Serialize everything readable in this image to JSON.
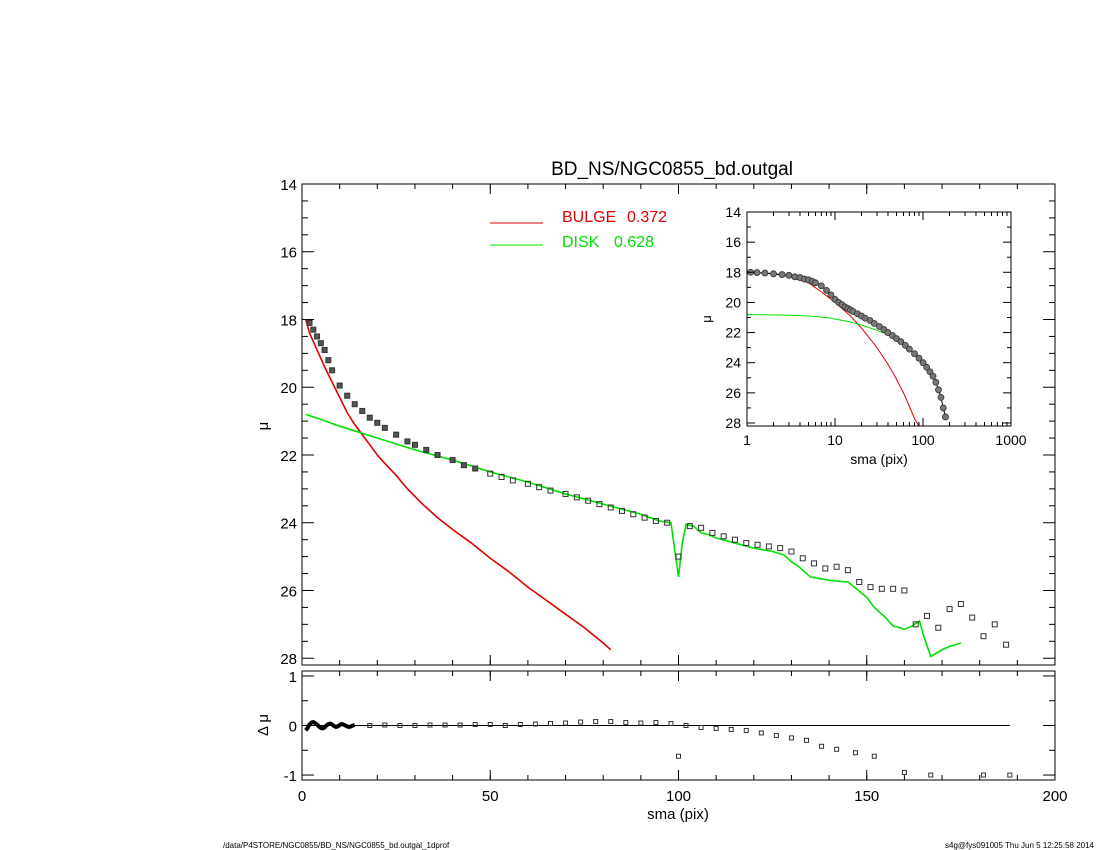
{
  "chart_data": [
    {
      "type": "scatter",
      "title": "BD_NS/NGC0855_bd.outgal",
      "xlabel": "",
      "ylabel": "μ",
      "xlim": [
        0,
        200
      ],
      "ylim": [
        28.2,
        14
      ],
      "y_inverted": true,
      "x_ticks": [
        0,
        50,
        100,
        150,
        200
      ],
      "y_ticks": [
        14,
        16,
        18,
        20,
        22,
        24,
        26,
        28
      ],
      "y_tick_labels": [
        "14",
        "16",
        "18",
        "20",
        "22",
        "24",
        "26",
        "28"
      ],
      "legend": [
        {
          "label": "BULGE",
          "value": "0.372",
          "color": "#e00000"
        },
        {
          "label": "DISK",
          "value": "0.628",
          "color": "#00e000"
        }
      ],
      "series": [
        {
          "name": "BULGE",
          "kind": "line",
          "color": "#e00000",
          "x": [
            1,
            2,
            4,
            6,
            8,
            10,
            12,
            14,
            16,
            18,
            20,
            22,
            25,
            28,
            32,
            36,
            40,
            45,
            50,
            55,
            60,
            65,
            70,
            75,
            80,
            82
          ],
          "y": [
            18.0,
            18.4,
            18.9,
            19.4,
            19.85,
            20.3,
            20.75,
            21.1,
            21.4,
            21.7,
            22.0,
            22.25,
            22.6,
            23.0,
            23.45,
            23.85,
            24.2,
            24.6,
            25.05,
            25.45,
            25.9,
            26.3,
            26.7,
            27.1,
            27.55,
            27.75
          ]
        },
        {
          "name": "DISK",
          "kind": "line",
          "color": "#00e000",
          "x": [
            1,
            5,
            10,
            20,
            30,
            40,
            50,
            60,
            70,
            80,
            90,
            95,
            98,
            100,
            101,
            102,
            104,
            106,
            108,
            110,
            115,
            120,
            125,
            128,
            130,
            132,
            135,
            140,
            145,
            150,
            152,
            155,
            157,
            159,
            160,
            162,
            164,
            165,
            167,
            170,
            172,
            175
          ],
          "y": [
            20.8,
            20.95,
            21.15,
            21.5,
            21.85,
            22.15,
            22.5,
            22.8,
            23.15,
            23.45,
            23.75,
            23.95,
            24.0,
            25.6,
            24.6,
            24.05,
            24.1,
            24.3,
            24.35,
            24.45,
            24.6,
            24.75,
            24.85,
            24.95,
            25.15,
            25.3,
            25.6,
            25.7,
            25.75,
            26.2,
            26.5,
            26.8,
            27.05,
            27.1,
            27.15,
            27.05,
            26.9,
            27.3,
            27.95,
            27.75,
            27.65,
            27.55
          ]
        },
        {
          "name": "",
          "kind": "points",
          "color": "#000000",
          "x": [
            2,
            3,
            4,
            5,
            6,
            7,
            8,
            10,
            12,
            14,
            16,
            18,
            20,
            22,
            25,
            28,
            30,
            33,
            36,
            40,
            43,
            46,
            50,
            53,
            56,
            60,
            63,
            66,
            70,
            73,
            76,
            79,
            82,
            85,
            88,
            91,
            94,
            97,
            100,
            103,
            106,
            109,
            112,
            115,
            118,
            121,
            124,
            127,
            130,
            133,
            136,
            139,
            142,
            145,
            148,
            151,
            154,
            157,
            160,
            163,
            166,
            169,
            172,
            175,
            178,
            181,
            184,
            187
          ],
          "y": [
            18.1,
            18.3,
            18.5,
            18.7,
            18.9,
            19.2,
            19.5,
            19.95,
            20.25,
            20.5,
            20.7,
            20.9,
            21.05,
            21.2,
            21.4,
            21.6,
            21.7,
            21.85,
            22.0,
            22.15,
            22.3,
            22.4,
            22.55,
            22.65,
            22.75,
            22.85,
            22.95,
            23.05,
            23.15,
            23.25,
            23.35,
            23.45,
            23.55,
            23.65,
            23.75,
            23.85,
            23.95,
            24.0,
            25.0,
            24.1,
            24.15,
            24.3,
            24.4,
            24.5,
            24.6,
            24.65,
            24.7,
            24.75,
            24.85,
            25.05,
            25.2,
            25.35,
            25.3,
            25.4,
            25.75,
            25.9,
            25.95,
            25.95,
            26.0,
            27.0,
            26.75,
            27.1,
            26.55,
            26.4,
            26.8,
            27.35,
            27.0,
            27.6
          ]
        }
      ]
    },
    {
      "type": "line",
      "xlabel": "sma (pix)",
      "ylabel": "Δ μ",
      "xlim": [
        0,
        200
      ],
      "ylim": [
        -1.1,
        1.1
      ],
      "x_ticks": [
        0,
        50,
        100,
        150,
        200
      ],
      "y_ticks": [
        1,
        0,
        -1
      ],
      "y_tick_labels": [
        "1",
        "0",
        "-1"
      ],
      "series": [
        {
          "name": "",
          "kind": "zero_line",
          "color": "#000000",
          "x": [
            1,
            188
          ],
          "y": [
            0,
            0
          ]
        },
        {
          "name": "",
          "kind": "residual_curve",
          "color": "#000000",
          "x": [
            1,
            1.5,
            2,
            2.5,
            3,
            3.5,
            4,
            4.5,
            5,
            5.5,
            6,
            6.5,
            7,
            7.5,
            8,
            8.5,
            9,
            9.5,
            10,
            10.5,
            11,
            11.5,
            12,
            12.5,
            13,
            13.5,
            14
          ],
          "y": [
            -0.1,
            -0.05,
            0.02,
            0.06,
            0.07,
            0.05,
            0.02,
            -0.02,
            -0.05,
            -0.06,
            -0.04,
            0.0,
            0.03,
            0.04,
            0.02,
            -0.01,
            -0.03,
            -0.02,
            0.01,
            0.03,
            0.02,
            0.0,
            -0.02,
            -0.03,
            -0.02,
            0.0,
            0.01
          ]
        },
        {
          "name": "",
          "kind": "points",
          "color": "#000000",
          "x": [
            18,
            22,
            26,
            30,
            34,
            38,
            42,
            46,
            50,
            54,
            58,
            62,
            66,
            70,
            74,
            78,
            82,
            86,
            90,
            94,
            98,
            100,
            102,
            106,
            110,
            114,
            118,
            122,
            126,
            130,
            134,
            138,
            142,
            147,
            152,
            160,
            167,
            181,
            188
          ],
          "y": [
            0.0,
            0.01,
            0.0,
            0.0,
            0.01,
            0.01,
            0.01,
            0.02,
            0.02,
            0.0,
            0.02,
            0.03,
            0.04,
            0.05,
            0.07,
            0.08,
            0.08,
            0.06,
            0.05,
            0.06,
            0.04,
            -0.62,
            0.0,
            -0.04,
            -0.06,
            -0.08,
            -0.1,
            -0.15,
            -0.2,
            -0.25,
            -0.3,
            -0.42,
            -0.48,
            -0.55,
            -0.62,
            -0.95,
            -1.0,
            -1.0,
            -1.0
          ]
        }
      ]
    },
    {
      "type": "scatter",
      "xlabel": "sma (pix)",
      "ylabel": "μ",
      "x_scale": "log",
      "xlim": [
        1,
        1000
      ],
      "ylim": [
        28.2,
        14
      ],
      "y_inverted": true,
      "x_ticks": [
        1,
        10,
        100,
        1000
      ],
      "y_ticks": [
        14,
        16,
        18,
        20,
        22,
        24,
        26,
        28
      ],
      "y_tick_labels": [
        "14",
        "16",
        "18",
        "20",
        "22",
        "24",
        "26",
        "28"
      ],
      "series": [
        {
          "name": "BULGE",
          "kind": "line",
          "color": "#e00000",
          "x": [
            1,
            2,
            3,
            5,
            7,
            10,
            15,
            20,
            30,
            40,
            50,
            60,
            70,
            80,
            90
          ],
          "y": [
            18.0,
            18.1,
            18.3,
            18.7,
            19.3,
            20.0,
            20.9,
            21.7,
            23.0,
            24.1,
            25.1,
            26.0,
            26.9,
            27.7,
            28.3
          ]
        },
        {
          "name": "DISK",
          "kind": "line",
          "color": "#00e000",
          "x": [
            1,
            3,
            5,
            8,
            10,
            15,
            20,
            30,
            40,
            50,
            60
          ],
          "y": [
            20.8,
            20.85,
            20.9,
            21.0,
            21.1,
            21.3,
            21.5,
            21.85,
            22.15,
            22.4,
            22.7
          ]
        },
        {
          "name": "",
          "kind": "points",
          "color": "#000000",
          "x": [
            1.1,
            1.3,
            1.6,
            2,
            2.5,
            3,
            3.5,
            4,
            4.5,
            5,
            5.5,
            6,
            7,
            8,
            9,
            10,
            11,
            12,
            13,
            14,
            15,
            16,
            18,
            20,
            22,
            25,
            28,
            32,
            36,
            40,
            45,
            50,
            56,
            63,
            70,
            80,
            90,
            100,
            110,
            120,
            130,
            140,
            150,
            160,
            170,
            180
          ],
          "y": [
            18.0,
            18.02,
            18.05,
            18.1,
            18.15,
            18.2,
            18.3,
            18.35,
            18.45,
            18.5,
            18.6,
            18.7,
            18.9,
            19.2,
            19.5,
            19.8,
            20.0,
            20.15,
            20.3,
            20.4,
            20.5,
            20.6,
            20.75,
            20.9,
            21.05,
            21.2,
            21.4,
            21.6,
            21.8,
            22.0,
            22.2,
            22.4,
            22.6,
            22.85,
            23.1,
            23.4,
            23.7,
            24.0,
            24.3,
            24.6,
            24.9,
            25.3,
            25.8,
            26.3,
            27.0,
            27.6
          ]
        }
      ]
    }
  ],
  "footer": {
    "left": "/data/P4STORE/NGC0855/BD_NS/NGC0855_bd.outgal_1dprof",
    "right": "s4g@fys091005  Thu Jun  5 12:25:58 2014"
  }
}
